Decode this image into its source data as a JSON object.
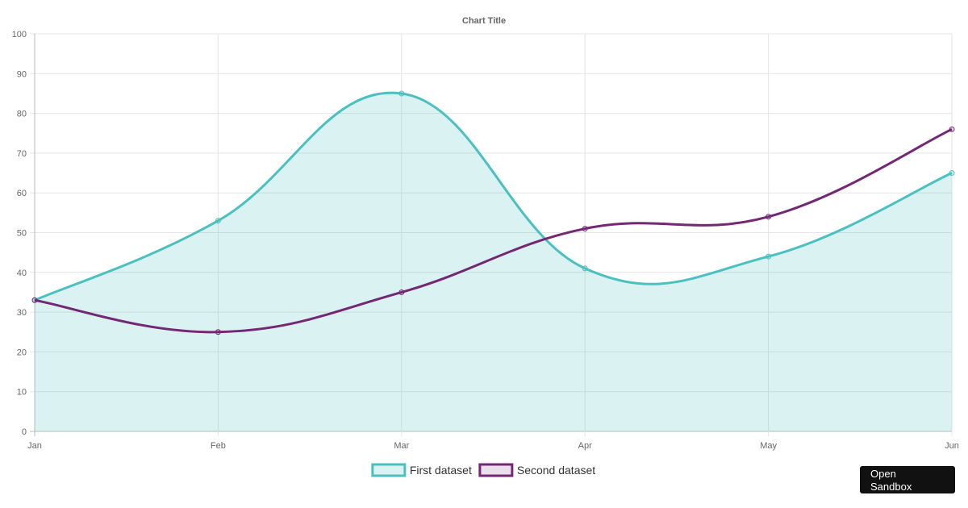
{
  "chart_data": {
    "type": "line",
    "title": "Chart Title",
    "categories": [
      "Jan",
      "Feb",
      "Mar",
      "Apr",
      "May",
      "Jun"
    ],
    "ylim": [
      0,
      100
    ],
    "yticks": [
      0,
      10,
      20,
      30,
      40,
      50,
      60,
      70,
      80,
      90,
      100
    ],
    "grid": true,
    "legend_position": "bottom",
    "series": [
      {
        "name": "First dataset",
        "values": [
          33,
          53,
          85,
          41,
          44,
          65
        ],
        "color": "#4bc0c0",
        "fill": "rgba(75,192,192,0.2)",
        "filled": true
      },
      {
        "name": "Second dataset",
        "values": [
          33,
          25,
          35,
          51,
          54,
          76
        ],
        "color": "#742774",
        "fill": "rgba(116,39,116,0.15)",
        "filled": false
      }
    ]
  },
  "sandbox_button": {
    "label": "Open Sandbox"
  }
}
